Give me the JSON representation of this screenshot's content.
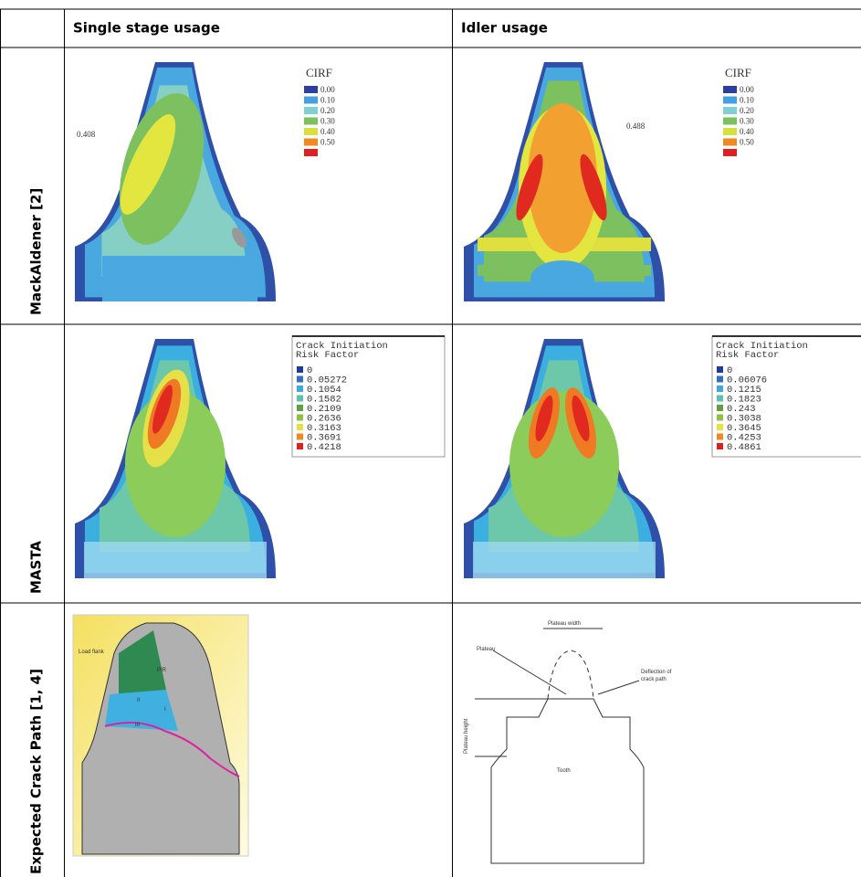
{
  "header": {
    "columns": [
      "Single stage usage",
      "Idler usage"
    ]
  },
  "rows": [
    {
      "label": "MackAldener [2]"
    },
    {
      "label": "MASTA"
    },
    {
      "label": "Expected Crack Path [1, 4]"
    }
  ],
  "figures": {
    "mackaldener_single": {
      "legend_title": "CIRF",
      "legend": [
        "0.00",
        "0.10",
        "0.20",
        "0.30",
        "0.40",
        "0.50"
      ],
      "annotation": "0.408"
    },
    "mackaldener_idler": {
      "legend_title": "CIRF",
      "legend": [
        "0.00",
        "0.10",
        "0.20",
        "0.30",
        "0.40",
        "0.50"
      ],
      "annotation": "0.488"
    },
    "masta_single": {
      "legend_title": [
        "Crack Initiation",
        "Risk Factor"
      ],
      "legend": [
        "0",
        "0.05272",
        "0.1054",
        "0.1582",
        "0.2109",
        "0.2636",
        "0.3163",
        "0.3691",
        "0.4218"
      ]
    },
    "masta_idler": {
      "legend_title": [
        "Crack Initiation",
        "Risk Factor"
      ],
      "legend": [
        "0",
        "0.06076",
        "0.1215",
        "0.1823",
        "0.243",
        "0.3038",
        "0.3645",
        "0.4253",
        "0.4861"
      ]
    },
    "crack_single": {
      "labels": [
        "Load flank",
        "PIR",
        "II",
        "I",
        "III"
      ]
    },
    "crack_idler": {
      "labels": [
        "Plateau width",
        "Plateau",
        "Deflection of",
        "crack path",
        "Plateau height",
        "Tooth"
      ]
    }
  }
}
